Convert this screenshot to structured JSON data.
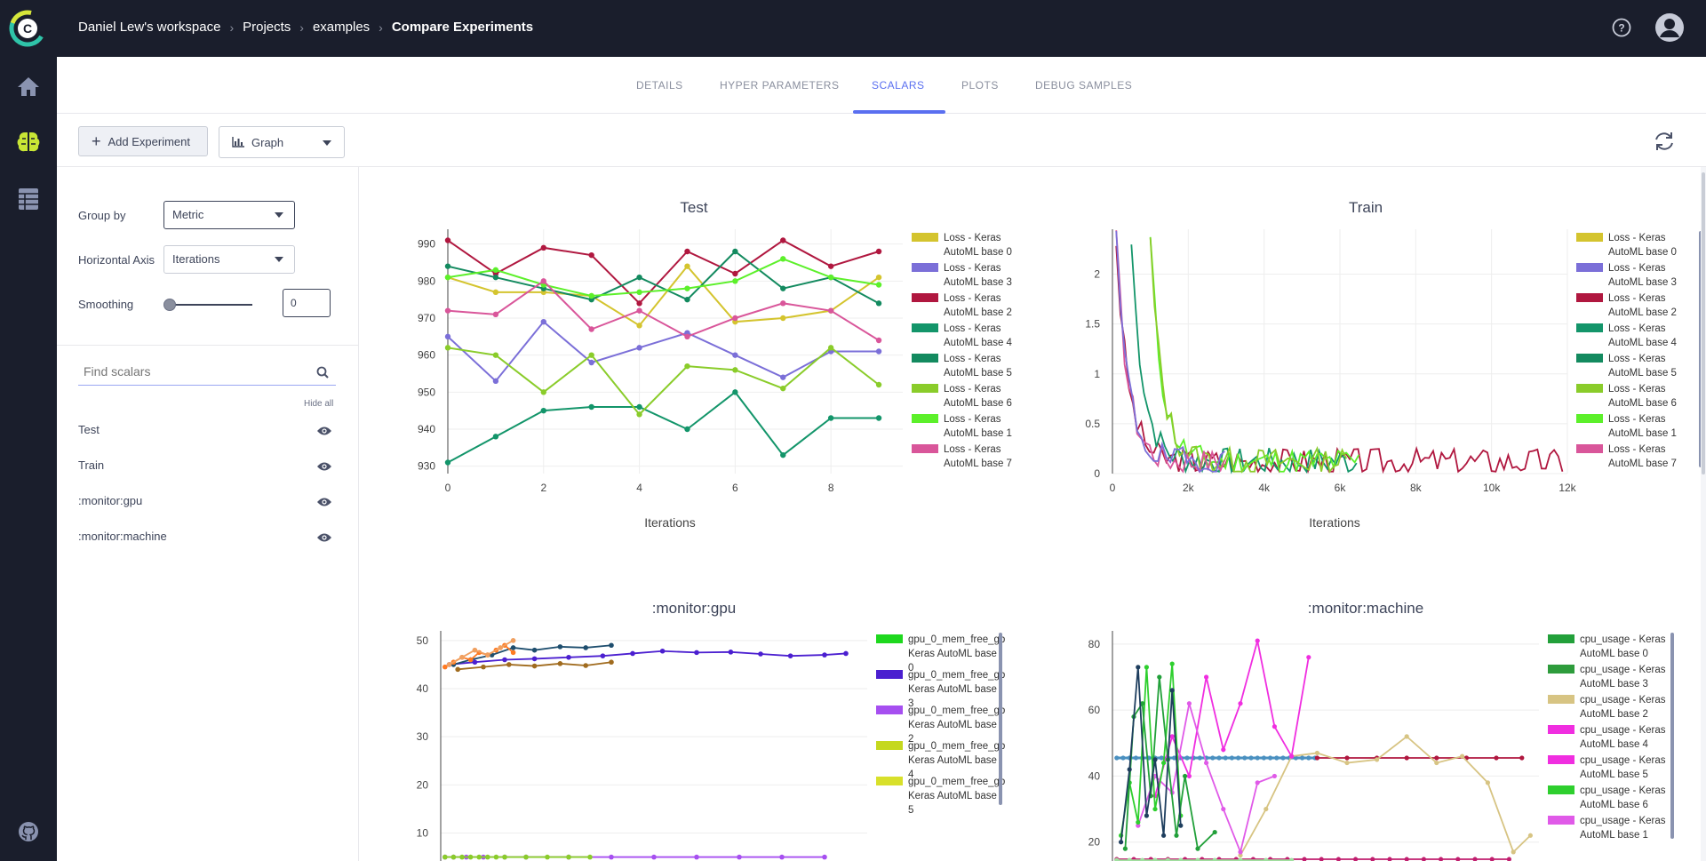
{
  "header": {
    "breadcrumb": [
      "Daniel Lew's workspace",
      "Projects",
      "examples",
      "Compare Experiments"
    ]
  },
  "tabs": [
    {
      "label": "DETAILS",
      "active": false
    },
    {
      "label": "HYPER PARAMETERS",
      "active": false
    },
    {
      "label": "SCALARS",
      "active": true
    },
    {
      "label": "PLOTS",
      "active": false
    },
    {
      "label": "DEBUG SAMPLES",
      "active": false
    }
  ],
  "toolbar": {
    "add_label": "Add Experiment",
    "view_label": "Graph"
  },
  "side": {
    "group_by_label": "Group by",
    "group_by_value": "Metric",
    "axis_label": "Horizontal Axis",
    "axis_value": "Iterations",
    "smoothing_label": "Smoothing",
    "smoothing_value": "0",
    "find_placeholder": "Find scalars",
    "hide_all": "Hide all",
    "metrics": [
      "Test",
      "Train",
      ":monitor:gpu",
      ":monitor:machine"
    ]
  },
  "colors": {
    "accent": "#5a6ff0",
    "nav_bg": "#1a1e2c",
    "brain_icon": "#c8e635"
  },
  "chart_data": [
    {
      "type": "line",
      "title": "Test",
      "xlabel": "Iterations",
      "xlim": [
        0,
        9.5
      ],
      "ylim": [
        928,
        994
      ],
      "xticks": [
        0,
        2,
        4,
        6,
        8
      ],
      "yticks": [
        930,
        940,
        950,
        960,
        970,
        980,
        990
      ],
      "x": [
        0,
        1,
        2,
        3,
        4,
        5,
        6,
        7,
        8,
        9
      ],
      "series": [
        {
          "name": "Loss - Keras AutoML base 0",
          "color": "#d4c42e",
          "values": [
            981,
            977,
            977,
            976,
            968,
            984,
            969,
            970,
            972,
            981
          ]
        },
        {
          "name": "Loss - Keras AutoML base 3",
          "color": "#7b6fd8",
          "values": [
            965,
            953,
            969,
            958,
            962,
            966,
            960,
            954,
            961,
            961
          ]
        },
        {
          "name": "Loss - Keras AutoML base 2",
          "color": "#b0173f",
          "values": [
            991,
            982,
            989,
            987,
            974,
            988,
            982,
            991,
            984,
            988
          ]
        },
        {
          "name": "Loss - Keras AutoML base 4",
          "color": "#13956a",
          "values": [
            931,
            938,
            945,
            946,
            946,
            940,
            950,
            933,
            943,
            943
          ]
        },
        {
          "name": "Loss - Keras AutoML base 5",
          "color": "#138a5f",
          "values": [
            984,
            981,
            978,
            975,
            981,
            975,
            988,
            978,
            981,
            974
          ]
        },
        {
          "name": "Loss - Keras AutoML base 6",
          "color": "#8acc2a",
          "values": [
            962,
            960,
            950,
            960,
            944,
            957,
            956,
            951,
            962,
            952
          ]
        },
        {
          "name": "Loss - Keras AutoML base 1",
          "color": "#5cf02a",
          "values": [
            981,
            983,
            979,
            976,
            977,
            978,
            980,
            986,
            981,
            979
          ]
        },
        {
          "name": "Loss - Keras AutoML base 7",
          "color": "#d9569a",
          "values": [
            972,
            971,
            980,
            967,
            972,
            965,
            970,
            974,
            972,
            964
          ]
        }
      ]
    },
    {
      "type": "line",
      "title": "Train",
      "xlabel": "Iterations",
      "xlim": [
        0,
        12000
      ],
      "ylim": [
        0,
        2.45
      ],
      "xticks": [
        0,
        2000,
        4000,
        6000,
        8000,
        10000,
        12000
      ],
      "xticklabels": [
        "0",
        "2k",
        "4k",
        "6k",
        "8k",
        "10k",
        "12k"
      ],
      "yticks": [
        0,
        0.5,
        1,
        1.5,
        2
      ],
      "series": [
        {
          "name": "Loss - Keras AutoML base 0",
          "color": "#d4c42e"
        },
        {
          "name": "Loss - Keras AutoML base 3",
          "color": "#7b6fd8"
        },
        {
          "name": "Loss - Keras AutoML base 2",
          "color": "#b0173f"
        },
        {
          "name": "Loss - Keras AutoML base 4",
          "color": "#13956a"
        },
        {
          "name": "Loss - Keras AutoML base 5",
          "color": "#138a5f"
        },
        {
          "name": "Loss - Keras AutoML base 6",
          "color": "#8acc2a"
        },
        {
          "name": "Loss - Keras AutoML base 1",
          "color": "#5cf02a"
        },
        {
          "name": "Loss - Keras AutoML base 7",
          "color": "#d9569a"
        }
      ]
    },
    {
      "type": "line",
      "title": ":monitor:gpu",
      "xlim": [
        0,
        1
      ],
      "ylim": [
        4,
        52
      ],
      "yticks": [
        10,
        20,
        30,
        40,
        50
      ],
      "series": [
        {
          "name": "gpu_0_mem_free_gb Keras AutoML base 0",
          "color": "#1ed81e"
        },
        {
          "name": "gpu_0_mem_free_gb Keras AutoML base 3",
          "color": "#4b1fd0"
        },
        {
          "name": "gpu_0_mem_free_gb Keras AutoML base 2",
          "color": "#a64ff0"
        },
        {
          "name": "gpu_0_mem_free_gb Keras AutoML base 4",
          "color": "#c5d81e"
        },
        {
          "name": "gpu_0_mem_free_gb Keras AutoML base 5",
          "color": "#d8e02a"
        }
      ]
    },
    {
      "type": "line",
      "title": ":monitor:machine",
      "xlim": [
        0,
        1
      ],
      "ylim": [
        14,
        84
      ],
      "yticks": [
        20,
        40,
        60,
        80
      ],
      "series": [
        {
          "name": "cpu_usage - Keras AutoML base 0",
          "color": "#22a03a"
        },
        {
          "name": "cpu_usage - Keras AutoML base 3",
          "color": "#2e9c3c"
        },
        {
          "name": "cpu_usage - Keras AutoML base 2",
          "color": "#d7c483"
        },
        {
          "name": "cpu_usage - Keras AutoML base 4",
          "color": "#f02ee0"
        },
        {
          "name": "cpu_usage - Keras AutoML base 5",
          "color": "#f02ee0"
        },
        {
          "name": "cpu_usage - Keras AutoML base 6",
          "color": "#2ecf2e"
        },
        {
          "name": "cpu_usage - Keras AutoML base 1",
          "color": "#e05ae8"
        }
      ]
    }
  ]
}
